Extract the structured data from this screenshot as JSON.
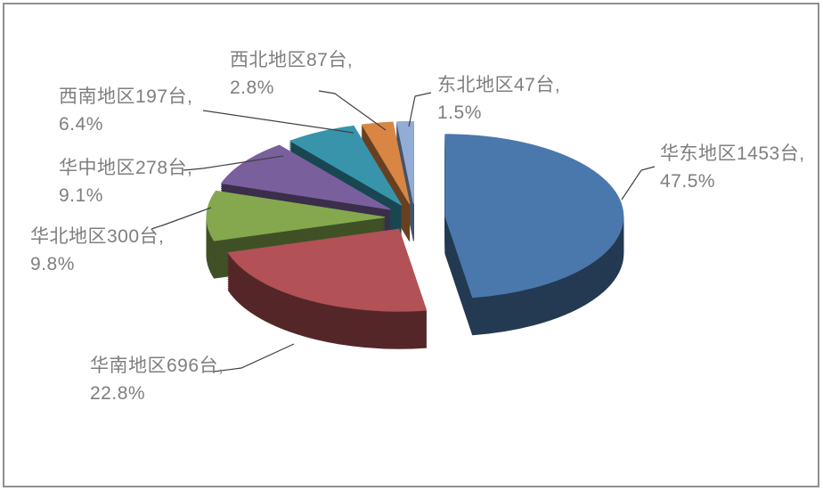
{
  "chart_data": {
    "type": "pie",
    "style": "3d-exploded",
    "title": "",
    "unit": "台",
    "legend": "none",
    "labels_position": "outside-callout",
    "label_text_color": "#7f7f7f",
    "leader_line_color": "#404040",
    "frame_border_color": "#8f8f8f",
    "categories": [
      "华东地区",
      "华南地区",
      "华北地区",
      "华中地区",
      "西南地区",
      "西北地区",
      "东北地区"
    ],
    "values": [
      1453,
      696,
      300,
      278,
      197,
      87,
      47
    ],
    "percentages": [
      47.5,
      22.8,
      9.8,
      9.1,
      6.4,
      2.8,
      1.5
    ],
    "colors": [
      "#4A78AD",
      "#B25156",
      "#85A84F",
      "#79609D",
      "#3794AB",
      "#D98543",
      "#93ACD5"
    ],
    "slices": [
      {
        "name": "华东地区",
        "value": 1453,
        "pct": "47.5%",
        "color": "#4A78AD",
        "label_line1": "华东地区1453台,",
        "label_line2": "47.5%"
      },
      {
        "name": "华南地区",
        "value": 696,
        "pct": "22.8%",
        "color": "#B25156",
        "label_line1": "华南地区696台,",
        "label_line2": "22.8%"
      },
      {
        "name": "华北地区",
        "value": 300,
        "pct": "9.8%",
        "color": "#85A84F",
        "label_line1": "华北地区300台,",
        "label_line2": "9.8%"
      },
      {
        "name": "华中地区",
        "value": 278,
        "pct": "9.1%",
        "color": "#79609D",
        "label_line1": "华中地区278台,",
        "label_line2": "9.1%"
      },
      {
        "name": "西南地区",
        "value": 197,
        "pct": "6.4%",
        "color": "#3794AB",
        "label_line1": "西南地区197台,",
        "label_line2": "6.4%"
      },
      {
        "name": "西北地区",
        "value": 87,
        "pct": "2.8%",
        "color": "#D98543",
        "label_line1": "西北地区87台,",
        "label_line2": "2.8%"
      },
      {
        "name": "东北地区",
        "value": 47,
        "pct": "1.5%",
        "color": "#93ACD5",
        "label_line1": "东北地区47台,",
        "label_line2": "1.5%"
      }
    ]
  }
}
